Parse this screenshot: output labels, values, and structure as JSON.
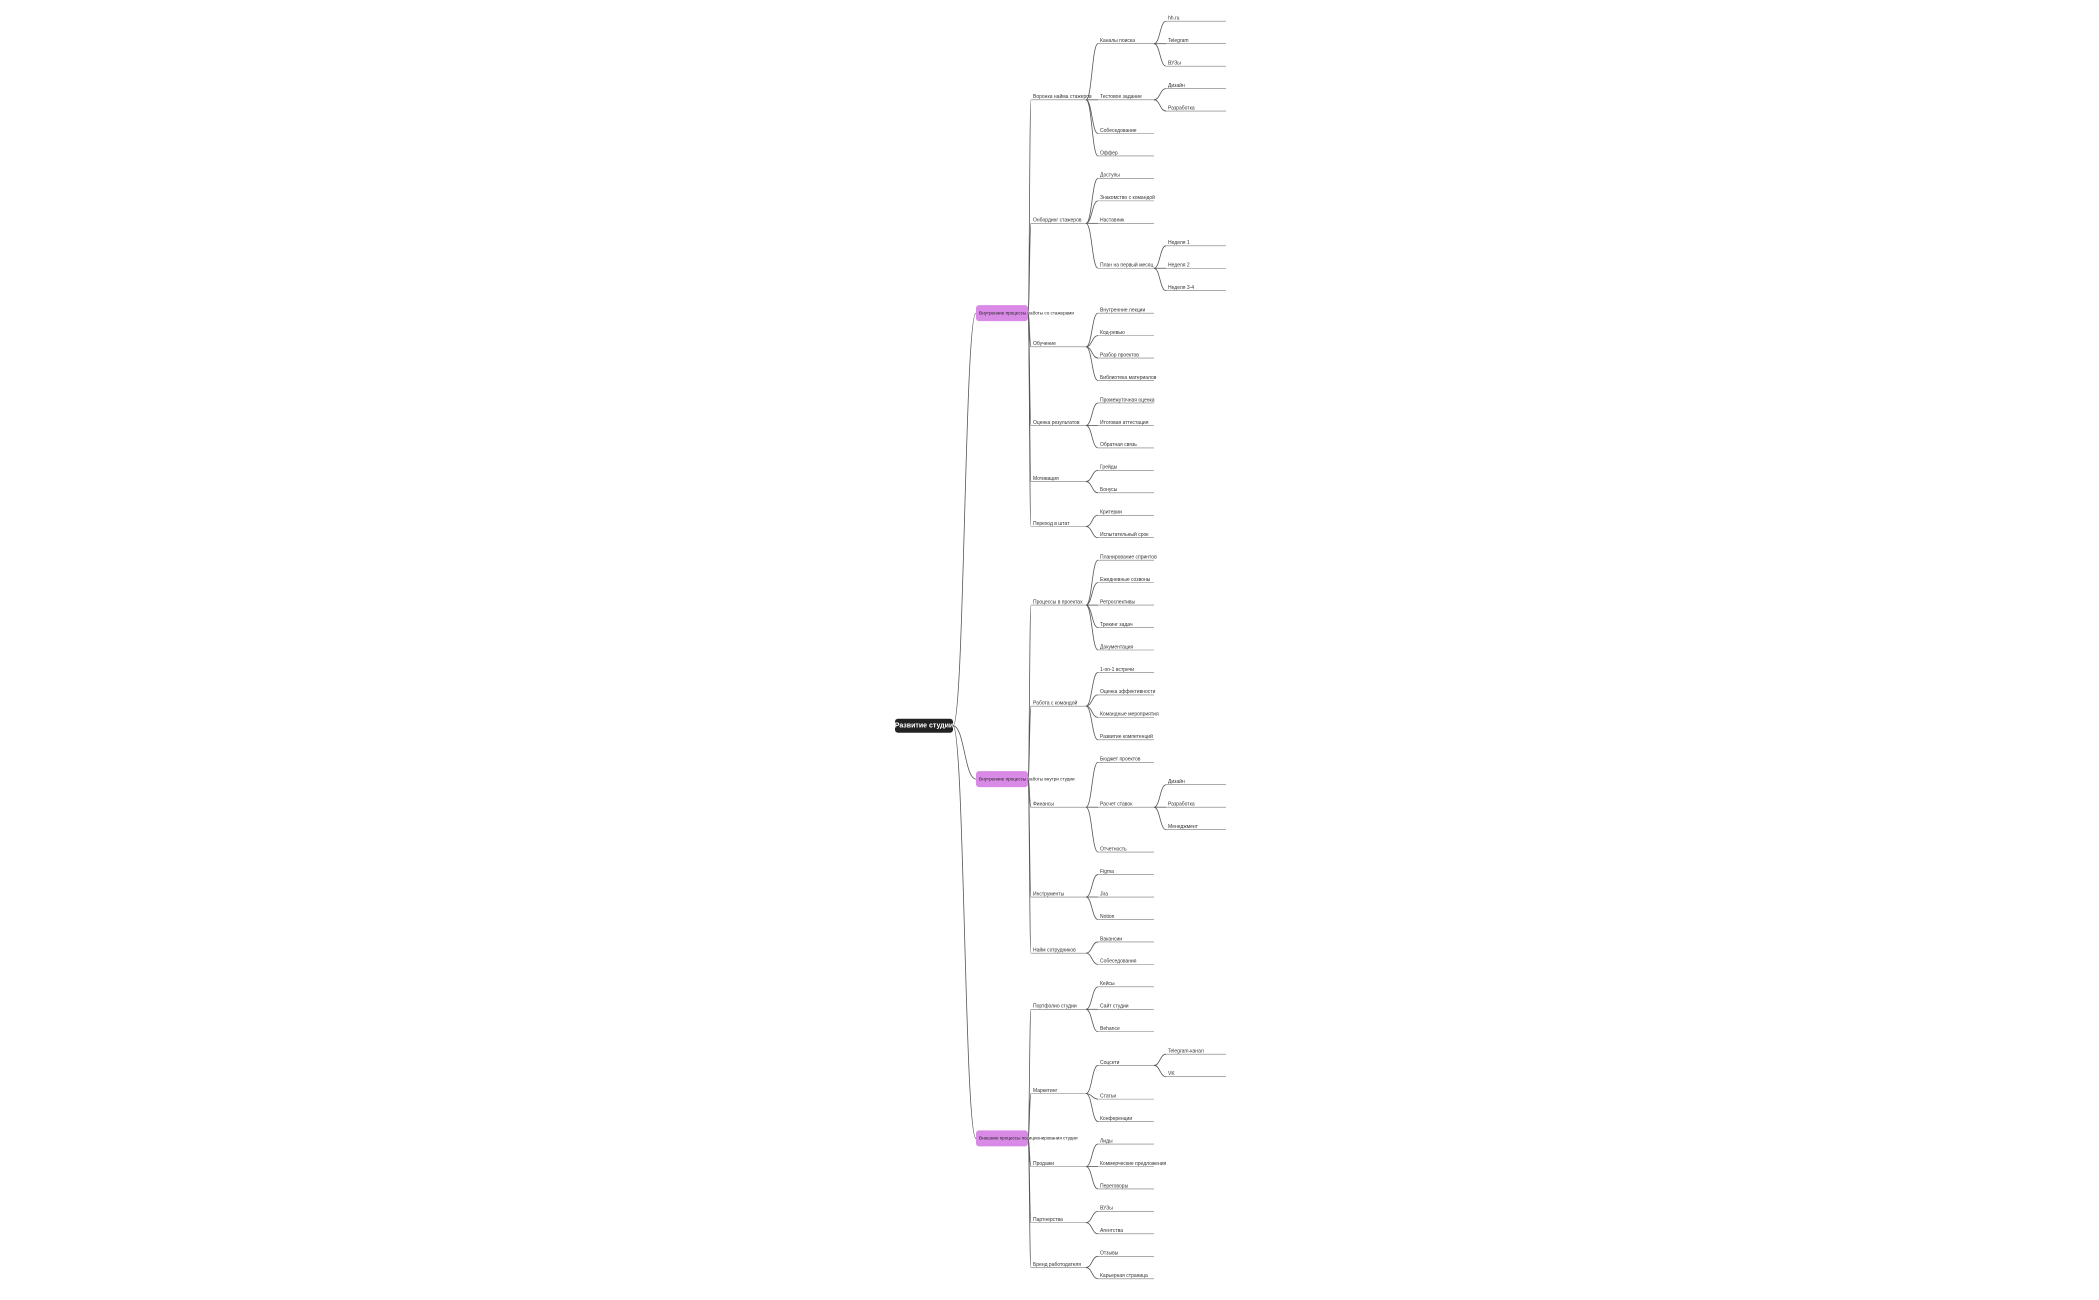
{
  "root": {
    "label": "Развитие студии",
    "children": [
      {
        "label": "Внутренние процессы работы со стажерами",
        "children": [
          {
            "label": "Воронка найма стажеров",
            "children": [
              {
                "label": "Каналы поиска",
                "children": [
                  {
                    "label": "hh.ru"
                  },
                  {
                    "label": "Telegram"
                  },
                  {
                    "label": "ВУЗы"
                  }
                ]
              },
              {
                "label": "Тестовое задание",
                "children": [
                  {
                    "label": "Дизайн"
                  },
                  {
                    "label": "Разработка"
                  }
                ]
              },
              {
                "label": "Собеседование"
              },
              {
                "label": "Оффер"
              }
            ]
          },
          {
            "label": "Онбординг стажеров",
            "children": [
              {
                "label": "Доступы"
              },
              {
                "label": "Знакомство с командой"
              },
              {
                "label": "Наставник"
              },
              {
                "label": "План на первый месяц",
                "children": [
                  {
                    "label": "Неделя 1"
                  },
                  {
                    "label": "Неделя 2"
                  },
                  {
                    "label": "Неделя 3-4"
                  }
                ]
              }
            ]
          },
          {
            "label": "Обучение",
            "children": [
              {
                "label": "Внутренние лекции"
              },
              {
                "label": "Код-ревью"
              },
              {
                "label": "Разбор проектов"
              },
              {
                "label": "Библиотека материалов"
              }
            ]
          },
          {
            "label": "Оценка результатов",
            "children": [
              {
                "label": "Промежуточная оценка"
              },
              {
                "label": "Итоговая аттестация"
              },
              {
                "label": "Обратная связь"
              }
            ]
          },
          {
            "label": "Мотивация",
            "children": [
              {
                "label": "Грейды"
              },
              {
                "label": "Бонусы"
              }
            ]
          },
          {
            "label": "Переход в штат",
            "children": [
              {
                "label": "Критерии"
              },
              {
                "label": "Испытательный срок"
              }
            ]
          }
        ]
      },
      {
        "label": "Внутренние процессы работы внутри студии",
        "children": [
          {
            "label": "Процессы в проектах",
            "children": [
              {
                "label": "Планирование спринтов"
              },
              {
                "label": "Ежедневные созвоны"
              },
              {
                "label": "Ретроспективы"
              },
              {
                "label": "Трекинг задач"
              },
              {
                "label": "Документация"
              }
            ]
          },
          {
            "label": "Работа с командой",
            "children": [
              {
                "label": "1-on-1 встречи"
              },
              {
                "label": "Оценка эффективности"
              },
              {
                "label": "Командные мероприятия"
              },
              {
                "label": "Развитие компетенций"
              }
            ]
          },
          {
            "label": "Финансы",
            "children": [
              {
                "label": "Бюджет проектов"
              },
              {
                "label": "Расчет ставок",
                "children": [
                  {
                    "label": "Дизайн"
                  },
                  {
                    "label": "Разработка"
                  },
                  {
                    "label": "Менеджмент"
                  }
                ]
              },
              {
                "label": "Отчетность"
              }
            ]
          },
          {
            "label": "Инструменты",
            "children": [
              {
                "label": "Figma"
              },
              {
                "label": "Jira"
              },
              {
                "label": "Notion"
              }
            ]
          },
          {
            "label": "Найм сотрудников",
            "children": [
              {
                "label": "Вакансии"
              },
              {
                "label": "Собеседования"
              }
            ]
          }
        ]
      },
      {
        "label": "Внешние процессы позиционирования студии",
        "children": [
          {
            "label": "Портфолио студии",
            "children": [
              {
                "label": "Кейсы"
              },
              {
                "label": "Сайт студии"
              },
              {
                "label": "Behance"
              }
            ]
          },
          {
            "label": "Маркетинг",
            "children": [
              {
                "label": "Соцсети",
                "children": [
                  {
                    "label": "Telegram-канал"
                  },
                  {
                    "label": "VK"
                  }
                ]
              },
              {
                "label": "Статьи"
              },
              {
                "label": "Конференции"
              }
            ]
          },
          {
            "label": "Продажи",
            "children": [
              {
                "label": "Лиды"
              },
              {
                "label": "Коммерческие предложения"
              },
              {
                "label": "Переговоры"
              }
            ]
          },
          {
            "label": "Партнерства",
            "children": [
              {
                "label": "ВУЗы"
              },
              {
                "label": "Агентства"
              }
            ]
          },
          {
            "label": "Бренд работодателя",
            "children": [
              {
                "label": "Отзывы"
              },
              {
                "label": "Карьерная страница"
              }
            ]
          }
        ]
      }
    ]
  }
}
